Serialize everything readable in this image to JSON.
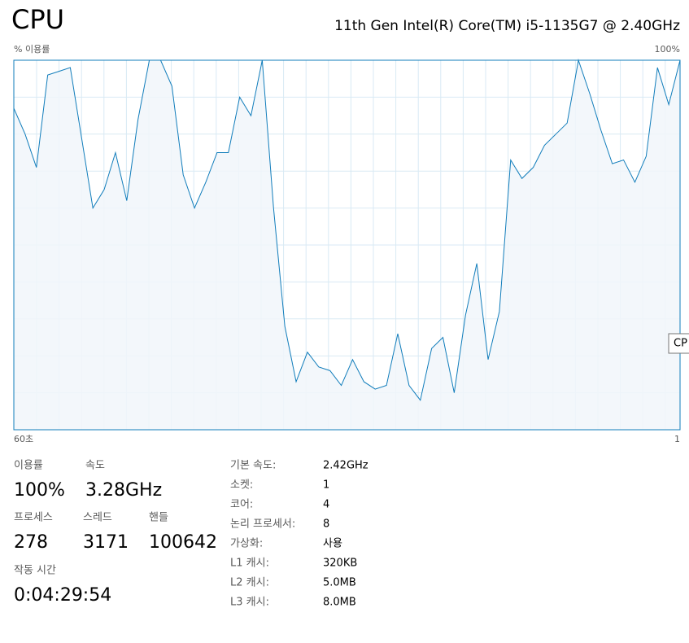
{
  "header": {
    "title": "CPU",
    "processor": "11th Gen Intel(R) Core(TM) i5-1135G7 @ 2.40GHz"
  },
  "chart_data": {
    "type": "line",
    "y_label": "% 이용률",
    "y_max_label": "100%",
    "x_tick_labels": [
      "60초",
      "1"
    ],
    "values": [
      87,
      80,
      71,
      96,
      97,
      98,
      79,
      60,
      65,
      75,
      62,
      84,
      100,
      100,
      93,
      69,
      60,
      67,
      75,
      75,
      90,
      85,
      100,
      60,
      28,
      13,
      21,
      17,
      16,
      12,
      19,
      13,
      11,
      12,
      26,
      12,
      8,
      22,
      25,
      10,
      31,
      45,
      19,
      32,
      73,
      68,
      71,
      77,
      80,
      83,
      100,
      91,
      81,
      72,
      73,
      67,
      74,
      98,
      88,
      100
    ],
    "ylim": [
      0,
      100
    ],
    "color": "#117dbb",
    "fill": "#f1f6fa",
    "grid": true
  },
  "tooltip": "CP",
  "stats": [
    {
      "label": "이용률",
      "value": "100%"
    },
    {
      "label": "속도",
      "value": "3.28GHz"
    },
    {
      "label": "프로세스",
      "value": "278"
    },
    {
      "label": "스레드",
      "value": "3171"
    },
    {
      "label": "핸들",
      "value": "100642"
    },
    {
      "label": "작동 시간",
      "value": "0:04:29:54"
    }
  ],
  "details": [
    {
      "label": "기본 속도:",
      "value": "2.42GHz"
    },
    {
      "label": "소켓:",
      "value": "1"
    },
    {
      "label": "코어:",
      "value": "4"
    },
    {
      "label": "논리 프로세서:",
      "value": "8"
    },
    {
      "label": "가상화:",
      "value": "사용"
    },
    {
      "label": "L1 캐시:",
      "value": "320KB"
    },
    {
      "label": "L2 캐시:",
      "value": "5.0MB"
    },
    {
      "label": "L3 캐시:",
      "value": "8.0MB"
    }
  ]
}
